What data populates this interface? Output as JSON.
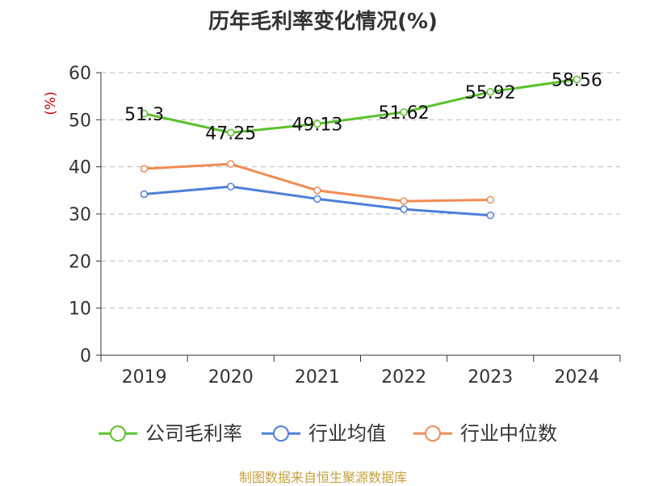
{
  "chart_data": {
    "type": "line",
    "title": "历年毛利率变化情况(%)",
    "ylabel": "(%)",
    "categories": [
      "2019",
      "2020",
      "2021",
      "2022",
      "2023",
      "2024"
    ],
    "ylim": [
      0,
      60
    ],
    "yticks": [
      "0",
      "10",
      "20",
      "30",
      "40",
      "50",
      "60"
    ],
    "grid": true,
    "legend_position": "bottom",
    "series": [
      {
        "name": "公司毛利率",
        "color": "#5cc12b",
        "values": [
          51.3,
          47.25,
          49.13,
          51.62,
          55.92,
          58.56
        ],
        "labels": [
          "51.3",
          "47.25",
          "49.13",
          "51.62",
          "55.92",
          "58.56"
        ]
      },
      {
        "name": "行业均值",
        "color": "#4e7fd8",
        "values": [
          34.2,
          35.8,
          33.2,
          31.0,
          29.7,
          null
        ]
      },
      {
        "name": "行业中位数",
        "color": "#f28b54",
        "values": [
          39.6,
          40.6,
          35.0,
          32.7,
          33.0,
          null
        ]
      }
    ]
  },
  "source_note": "制图数据来自恒生聚源数据库"
}
